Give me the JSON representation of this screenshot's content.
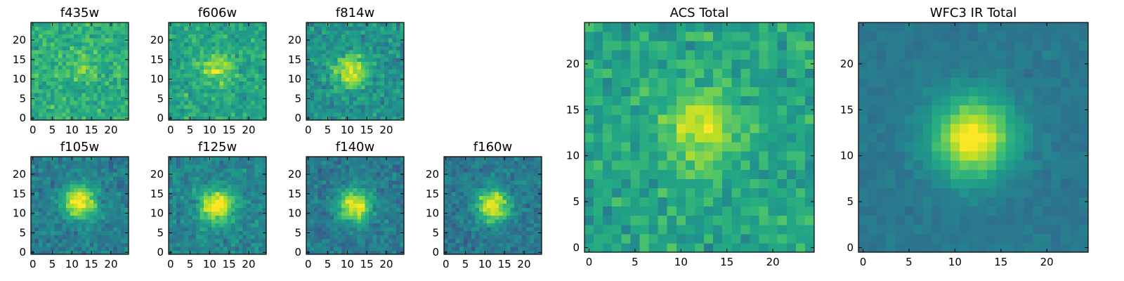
{
  "chart_data": [
    {
      "type": "heatmap",
      "title": "f435w",
      "xticks": [
        0,
        5,
        10,
        15,
        20
      ],
      "yticks": [
        0,
        5,
        10,
        15,
        20
      ],
      "xlim": [
        -0.5,
        24.5
      ],
      "ylim": [
        -0.5,
        24.5
      ],
      "grid_size": [
        25,
        25
      ],
      "colormap": "viridis",
      "source_peak": [
        12,
        13
      ],
      "peak_strength": 0.15,
      "background_level": 0.62,
      "noise_level": 0.2
    },
    {
      "type": "heatmap",
      "title": "f606w",
      "xticks": [
        0,
        5,
        10,
        15,
        20
      ],
      "yticks": [
        0,
        5,
        10,
        15,
        20
      ],
      "xlim": [
        -0.5,
        24.5
      ],
      "ylim": [
        -0.5,
        24.5
      ],
      "grid_size": [
        25,
        25
      ],
      "colormap": "viridis",
      "source_peak": [
        12,
        13
      ],
      "peak_strength": 0.3,
      "background_level": 0.58,
      "noise_level": 0.2
    },
    {
      "type": "heatmap",
      "title": "f814w",
      "xticks": [
        0,
        5,
        10,
        15,
        20
      ],
      "yticks": [
        0,
        5,
        10,
        15,
        20
      ],
      "xlim": [
        -0.5,
        24.5
      ],
      "ylim": [
        -0.5,
        24.5
      ],
      "grid_size": [
        25,
        25
      ],
      "colormap": "viridis",
      "source_peak": [
        11,
        12
      ],
      "peak_strength": 0.45,
      "background_level": 0.5,
      "noise_level": 0.2
    },
    {
      "type": "heatmap",
      "title": "f105w",
      "xticks": [
        0,
        5,
        10,
        15,
        20
      ],
      "yticks": [
        0,
        5,
        10,
        15,
        20
      ],
      "xlim": [
        -0.5,
        24.5
      ],
      "ylim": [
        -0.5,
        24.5
      ],
      "grid_size": [
        25,
        25
      ],
      "colormap": "viridis",
      "source_peak": [
        12,
        13
      ],
      "peak_strength": 0.6,
      "background_level": 0.42,
      "noise_level": 0.18
    },
    {
      "type": "heatmap",
      "title": "f125w",
      "xticks": [
        0,
        5,
        10,
        15,
        20
      ],
      "yticks": [
        0,
        5,
        10,
        15,
        20
      ],
      "xlim": [
        -0.5,
        24.5
      ],
      "ylim": [
        -0.5,
        24.5
      ],
      "grid_size": [
        25,
        25
      ],
      "colormap": "viridis",
      "source_peak": [
        12,
        12
      ],
      "peak_strength": 0.6,
      "background_level": 0.45,
      "noise_level": 0.18
    },
    {
      "type": "heatmap",
      "title": "f140w",
      "xticks": [
        0,
        5,
        10,
        15,
        20
      ],
      "yticks": [
        0,
        5,
        10,
        15,
        20
      ],
      "xlim": [
        -0.5,
        24.5
      ],
      "ylim": [
        -0.5,
        24.5
      ],
      "grid_size": [
        25,
        25
      ],
      "colormap": "viridis",
      "source_peak": [
        12,
        12
      ],
      "peak_strength": 0.6,
      "background_level": 0.4,
      "noise_level": 0.17
    },
    {
      "type": "heatmap",
      "title": "f160w",
      "xticks": [
        0,
        5,
        10,
        15,
        20
      ],
      "yticks": [
        0,
        5,
        10,
        15,
        20
      ],
      "xlim": [
        -0.5,
        24.5
      ],
      "ylim": [
        -0.5,
        24.5
      ],
      "grid_size": [
        25,
        25
      ],
      "colormap": "viridis",
      "source_peak": [
        12,
        12
      ],
      "peak_strength": 0.6,
      "background_level": 0.4,
      "noise_level": 0.17
    },
    {
      "type": "heatmap",
      "title": "ACS Total",
      "xticks": [
        0,
        5,
        10,
        15,
        20
      ],
      "yticks": [
        0,
        5,
        10,
        15,
        20
      ],
      "xlim": [
        -0.5,
        24.5
      ],
      "ylim": [
        -0.5,
        24.5
      ],
      "grid_size": [
        25,
        25
      ],
      "colormap": "viridis",
      "source_peak": [
        12,
        13
      ],
      "peak_strength": 0.35,
      "background_level": 0.58,
      "noise_level": 0.2
    },
    {
      "type": "heatmap",
      "title": "WFC3 IR Total",
      "xticks": [
        0,
        5,
        10,
        15,
        20
      ],
      "yticks": [
        0,
        5,
        10,
        15,
        20
      ],
      "xlim": [
        -0.5,
        24.5
      ],
      "ylim": [
        -0.5,
        24.5
      ],
      "grid_size": [
        25,
        25
      ],
      "colormap": "viridis",
      "source_peak": [
        12,
        12
      ],
      "peak_strength": 0.62,
      "background_level": 0.4,
      "noise_level": 0.07
    }
  ]
}
